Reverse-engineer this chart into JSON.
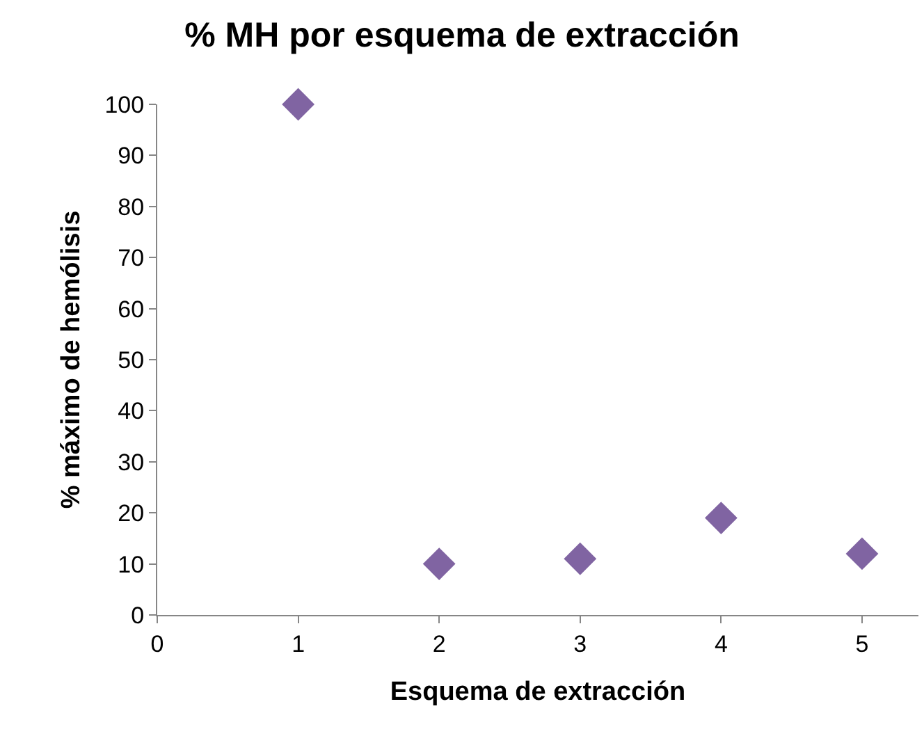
{
  "chart_data": {
    "type": "scatter",
    "title": "% MH por esquema de extracción",
    "xlabel": "Esquema de extracción",
    "ylabel": "% máximo de hemólisis",
    "x": [
      1,
      2,
      3,
      4,
      5
    ],
    "series": [
      {
        "color": "#8064a2",
        "values": [
          100,
          10,
          11,
          19,
          12
        ]
      }
    ],
    "xlim": [
      0,
      5.4
    ],
    "xticks": [
      0,
      1,
      2,
      3,
      4,
      5
    ],
    "ylim": [
      0,
      100
    ],
    "yticks": [
      0,
      10,
      20,
      30,
      40,
      50,
      60,
      70,
      80,
      90,
      100
    ],
    "legend": false,
    "marker": "diamond"
  }
}
